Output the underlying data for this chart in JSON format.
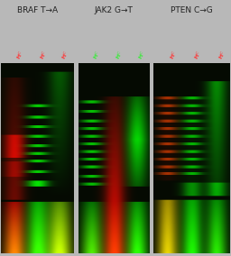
{
  "titles": [
    "BRAF T→A",
    "JAK2 G→T",
    "PTEN C→G"
  ],
  "fig_bg": "#b8b8b8",
  "panel_bg": "#050a03",
  "panels": [
    {
      "name": "BRAF",
      "n_lanes": 3,
      "lane_colors": [
        "red_ladder",
        "green_ladder_bottom",
        "green_red_bottom"
      ],
      "label_colors": [
        "#ff3333",
        "#ff3333",
        "#ff3333"
      ]
    },
    {
      "name": "JAK2",
      "n_lanes": 3,
      "lane_colors": [
        "green_ladder_bottom",
        "red_smear_bottom",
        "green_bottom"
      ],
      "label_colors": [
        "#33ff33",
        "#33ff33",
        "#33ff33"
      ]
    },
    {
      "name": "PTEN",
      "n_lanes": 3,
      "lane_colors": [
        "red_green_ladder",
        "green_ladder_bottom2",
        "green_bottom2"
      ],
      "label_colors": [
        "#ff3333",
        "#ff3333",
        "#ff3333"
      ]
    }
  ]
}
